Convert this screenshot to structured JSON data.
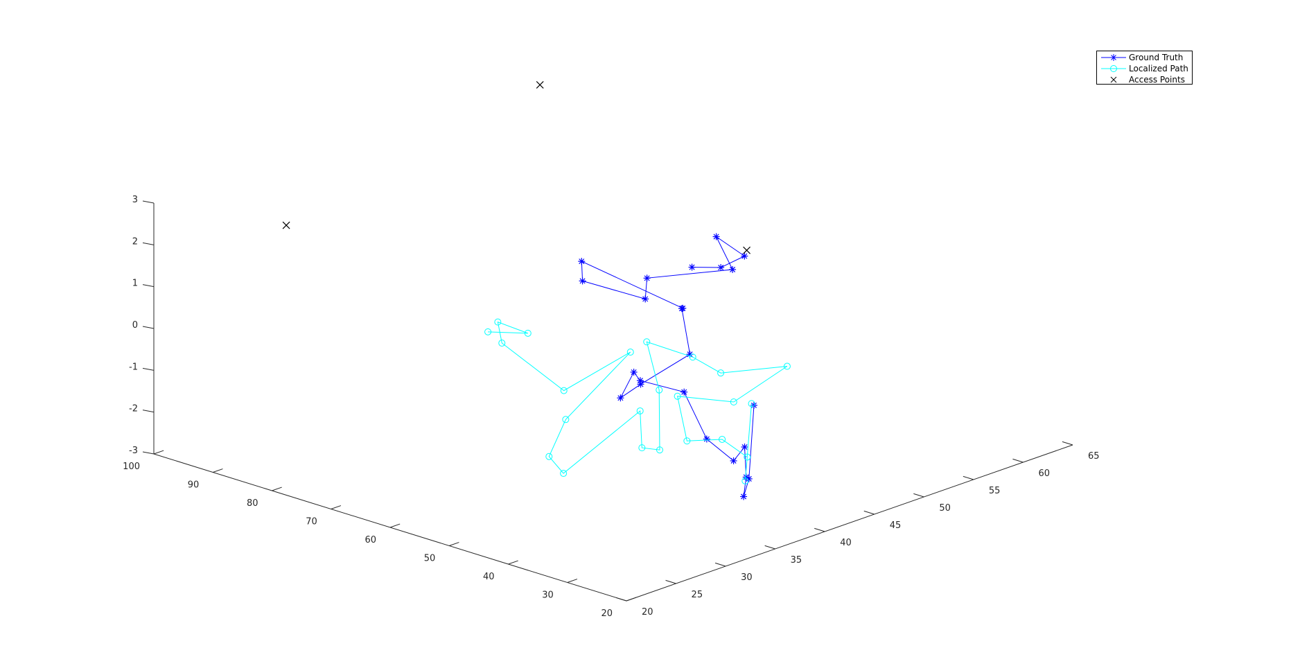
{
  "chart_data": {
    "type": "line3d",
    "title": "",
    "xlabel": "",
    "ylabel": "",
    "zlabel": "",
    "grid": false,
    "legend_position": "top-right",
    "axes": {
      "x": {
        "range": [
          20,
          100
        ],
        "ticks": [
          20,
          30,
          40,
          50,
          60,
          70,
          80,
          90,
          100
        ]
      },
      "y": {
        "range": [
          20,
          65
        ],
        "ticks": [
          20,
          25,
          30,
          35,
          40,
          45,
          50,
          55,
          60,
          65
        ]
      },
      "z": {
        "range": [
          -3,
          3
        ],
        "ticks": [
          -3,
          -2,
          -1,
          0,
          1,
          2,
          3
        ]
      }
    },
    "series": [
      {
        "name": "Ground Truth",
        "color": "#0000ff",
        "marker": "asterisk",
        "points": [
          [
            45.0,
            41.5,
            2.1
          ],
          [
            41.8,
            42.5,
            2.15
          ],
          [
            44.0,
            46.2,
            2.02
          ],
          [
            51.3,
            47.7,
            2.04
          ],
          [
            47.2,
            46.9,
            1.5
          ],
          [
            54.8,
            42.8,
            1.3
          ],
          [
            52.4,
            41.2,
            1.04
          ],
          [
            59.0,
            38.8,
            1.38
          ],
          [
            61.0,
            39.9,
            1.67
          ],
          [
            48.9,
            42.9,
            0.83
          ],
          [
            48.4,
            42.5,
            0.88
          ],
          [
            47.2,
            42.6,
            -0.17
          ],
          [
            51.0,
            39.9,
            -0.83
          ],
          [
            52.4,
            38.7,
            -1.12
          ],
          [
            53.0,
            40.4,
            -0.67
          ],
          [
            50.9,
            39.8,
            -0.73
          ],
          [
            46.5,
            41.6,
            -0.96
          ],
          [
            42.5,
            41.5,
            -1.9
          ],
          [
            38.8,
            42.0,
            -2.3
          ],
          [
            37.6,
            42.4,
            -1.95
          ],
          [
            36.5,
            41.9,
            -2.58
          ],
          [
            37.1,
            42.0,
            -3.08
          ],
          [
            37.2,
            42.6,
            -2.71
          ],
          [
            37.7,
            43.4,
            -1.04
          ]
        ]
      },
      {
        "name": "Localized Path",
        "color": "#00ffff",
        "marker": "circle",
        "points": [
          [
            73.5,
            37.9,
            -0.4
          ],
          [
            71.6,
            40.8,
            -0.59
          ],
          [
            73.0,
            38.6,
            -0.2
          ],
          [
            71.3,
            38.0,
            -0.58
          ],
          [
            64.5,
            40.2,
            -1.6
          ],
          [
            62.3,
            45.6,
            -1.03
          ],
          [
            61.0,
            38.3,
            -1.98
          ],
          [
            60.3,
            36.2,
            -2.66
          ],
          [
            55.0,
            34.5,
            -2.69
          ],
          [
            51.6,
            40.2,
            -1.52
          ],
          [
            48.1,
            38.3,
            -2.09
          ],
          [
            46.6,
            39.2,
            -2.15
          ],
          [
            48.2,
            40.1,
            -0.86
          ],
          [
            53.5,
            42.0,
            -0.1
          ],
          [
            48.9,
            43.9,
            -0.42
          ],
          [
            45.0,
            44.4,
            -0.67
          ],
          [
            39.8,
            48.0,
            -0.58
          ],
          [
            42.3,
            44.1,
            -1.22
          ],
          [
            44.1,
            39.5,
            -0.78
          ],
          [
            44.0,
            40.4,
            -1.92
          ],
          [
            40.4,
            41.8,
            -1.84
          ],
          [
            38.0,
            42.9,
            -2.25
          ],
          [
            37.0,
            42.1,
            -2.71
          ],
          [
            37.6,
            43.1,
            -0.97
          ]
        ]
      },
      {
        "name": "Access Points",
        "color": "#000000",
        "marker": "x",
        "line": false,
        "points": [
          [
            50.0,
            50.0,
            1.58
          ],
          [
            93.7,
            29.6,
            1.95
          ],
          [
            85.0,
            50.0,
            4.0
          ]
        ]
      }
    ]
  }
}
